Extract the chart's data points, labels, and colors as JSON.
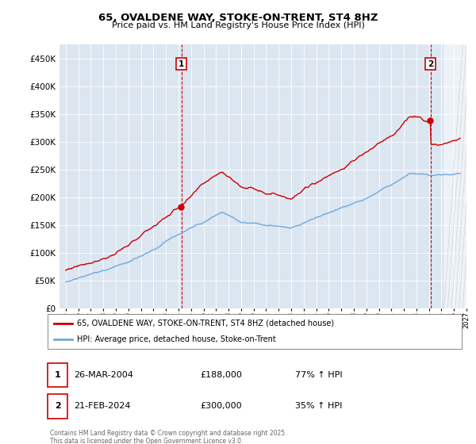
{
  "title": "65, OVALDENE WAY, STOKE-ON-TRENT, ST4 8HZ",
  "subtitle": "Price paid vs. HM Land Registry's House Price Index (HPI)",
  "hpi_color": "#6fa8dc",
  "price_color": "#cc0000",
  "annotation_color": "#cc0000",
  "background_color": "#ffffff",
  "plot_bg_color": "#dce6f1",
  "grid_color": "#ffffff",
  "ylim": [
    0,
    475000
  ],
  "yticks": [
    0,
    50000,
    100000,
    150000,
    200000,
    250000,
    300000,
    350000,
    400000,
    450000
  ],
  "xlim_start": 1994.5,
  "xlim_end": 2027.0,
  "event1_x": 2004.23,
  "event1_y": 188000,
  "event1_label": "1",
  "event2_x": 2024.13,
  "event2_y": 300000,
  "event2_label": "2",
  "legend_line1": "65, OVALDENE WAY, STOKE-ON-TRENT, ST4 8HZ (detached house)",
  "legend_line2": "HPI: Average price, detached house, Stoke-on-Trent",
  "table_row1": [
    "1",
    "26-MAR-2004",
    "£188,000",
    "77% ↑ HPI"
  ],
  "table_row2": [
    "2",
    "21-FEB-2024",
    "£300,000",
    "35% ↑ HPI"
  ],
  "footer": "Contains HM Land Registry data © Crown copyright and database right 2025.\nThis data is licensed under the Open Government Licence v3.0."
}
